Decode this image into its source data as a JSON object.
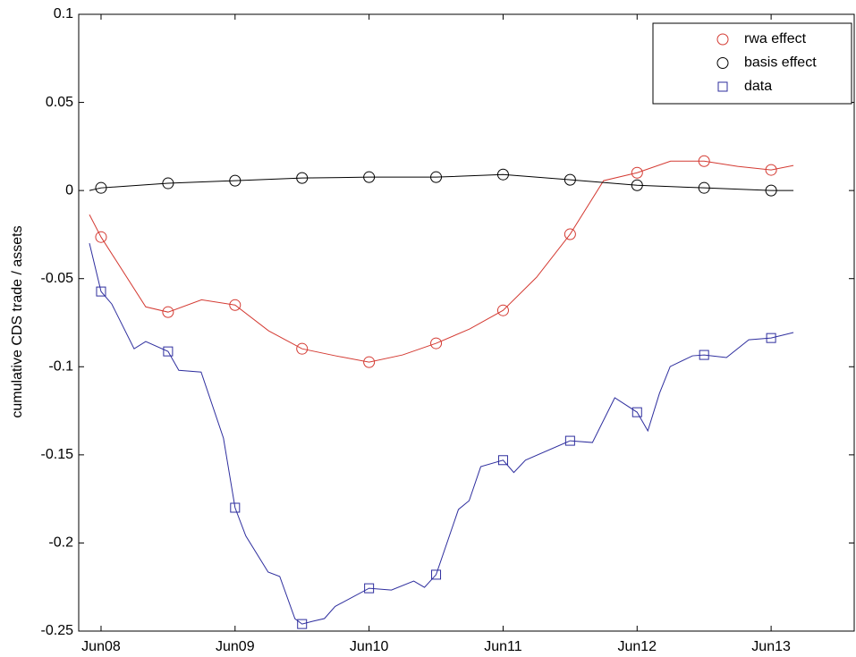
{
  "chart_data": {
    "type": "line",
    "ylabel": "cumulative CDS trade / assets",
    "xlim": [
      2008.3333,
      2014.12
    ],
    "ylim": [
      -0.25,
      0.1
    ],
    "xticks": [
      {
        "value": 2008.5,
        "label": "Jun08"
      },
      {
        "value": 2009.5,
        "label": "Jun09"
      },
      {
        "value": 2010.5,
        "label": "Jun10"
      },
      {
        "value": 2011.5,
        "label": "Jun11"
      },
      {
        "value": 2012.5,
        "label": "Jun12"
      },
      {
        "value": 2013.5,
        "label": "Jun13"
      }
    ],
    "yticks": [
      -0.25,
      -0.2,
      -0.15,
      -0.1,
      -0.05,
      0,
      0.05,
      0.1
    ],
    "legend": "upper right",
    "series": [
      {
        "name": "rwa effect",
        "color": "#d43a32",
        "marker": "circle",
        "x": [
          2008.4133,
          2008.5,
          2008.8333,
          2009.0,
          2009.25,
          2009.5,
          2009.75,
          2010.0,
          2010.25,
          2010.5,
          2010.75,
          2011.0,
          2011.25,
          2011.5,
          2011.75,
          2012.0,
          2012.25,
          2012.5,
          2012.75,
          2013.0,
          2013.25,
          2013.5,
          2013.6667
        ],
        "values": [
          -0.0137,
          -0.0264,
          -0.066,
          -0.069,
          -0.062,
          -0.065,
          -0.0796,
          -0.0898,
          -0.0938,
          -0.0974,
          -0.0933,
          -0.0867,
          -0.0786,
          -0.068,
          -0.0492,
          -0.0248,
          0.0056,
          0.0101,
          0.0167,
          0.0167,
          0.0137,
          0.0117,
          0.0142
        ],
        "marker_x": [
          2008.5,
          2009.0,
          2009.5,
          2010.0,
          2010.5,
          2011.0,
          2011.5,
          2012.0,
          2012.5,
          2013.0,
          2013.5
        ],
        "marker_values": [
          -0.0264,
          -0.069,
          -0.065,
          -0.0898,
          -0.0974,
          -0.0867,
          -0.068,
          -0.0248,
          0.0101,
          0.0167,
          0.0117
        ]
      },
      {
        "name": "basis effect",
        "color": "#000000",
        "marker": "circle",
        "x": [
          2008.4133,
          2008.5,
          2009.0,
          2009.5,
          2010.0,
          2010.5,
          2011.0,
          2011.5,
          2012.0,
          2012.5,
          2013.0,
          2013.5,
          2013.6667
        ],
        "values": [
          0,
          0.0015,
          0.0041,
          0.0056,
          0.0071,
          0.0076,
          0.0076,
          0.0091,
          0.0061,
          0.003,
          0.0015,
          0,
          0
        ],
        "marker_x": [
          2008.5,
          2009.0,
          2009.5,
          2010.0,
          2010.5,
          2011.0,
          2011.5,
          2012.0,
          2012.5,
          2013.0,
          2013.5
        ],
        "marker_values": [
          0.0015,
          0.0041,
          0.0056,
          0.0071,
          0.0076,
          0.0076,
          0.0091,
          0.0061,
          0.003,
          0.0015,
          0
        ]
      },
      {
        "name": "data",
        "color": "#2e2e9e",
        "marker": "square",
        "x": [
          2008.4133,
          2008.5,
          2008.58,
          2008.7467,
          2008.8333,
          2009.0,
          2009.08,
          2009.2467,
          2009.4133,
          2009.5,
          2009.58,
          2009.7467,
          2009.8333,
          2009.9467,
          2010.0,
          2010.08,
          2010.1667,
          2010.2467,
          2010.5,
          2010.6667,
          2010.8333,
          2010.9133,
          2011.0,
          2011.1667,
          2011.2467,
          2011.3333,
          2011.5,
          2011.58,
          2011.6667,
          2012.0,
          2012.1667,
          2012.3333,
          2012.5,
          2012.58,
          2012.6667,
          2012.7467,
          2012.9133,
          2013.0,
          2013.1667,
          2013.3333,
          2013.5,
          2013.6667
        ],
        "values": [
          -0.0299,
          -0.0573,
          -0.0644,
          -0.0898,
          -0.0857,
          -0.0913,
          -0.102,
          -0.103,
          -0.1405,
          -0.18,
          -0.196,
          -0.2165,
          -0.219,
          -0.243,
          -0.246,
          -0.2444,
          -0.2429,
          -0.236,
          -0.2257,
          -0.2267,
          -0.2216,
          -0.2252,
          -0.218,
          -0.181,
          -0.176,
          -0.1567,
          -0.153,
          -0.16,
          -0.153,
          -0.142,
          -0.143,
          -0.1176,
          -0.1258,
          -0.1364,
          -0.1151,
          -0.0999,
          -0.0938,
          -0.0933,
          -0.0948,
          -0.0847,
          -0.0837,
          -0.0806
        ],
        "marker_x": [
          2008.5,
          2009.0,
          2009.5,
          2010.0,
          2010.5,
          2011.0,
          2011.5,
          2012.0,
          2012.5,
          2013.0,
          2013.5
        ],
        "marker_values": [
          -0.0573,
          -0.0913,
          -0.18,
          -0.246,
          -0.2257,
          -0.218,
          -0.153,
          -0.142,
          -0.1258,
          -0.0933,
          -0.0837
        ]
      }
    ]
  }
}
